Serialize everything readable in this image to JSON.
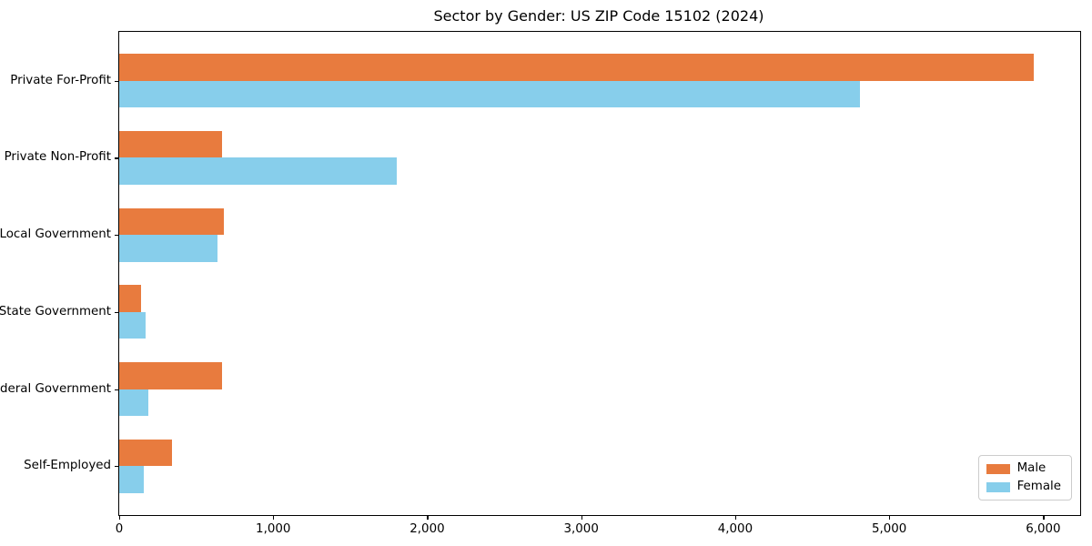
{
  "chart_data": {
    "type": "bar",
    "orientation": "horizontal",
    "title": "Sector by Gender: US ZIP Code 15102 (2024)",
    "categories": [
      "Private For-Profit",
      "Private Non-Profit",
      "Local Government",
      "State Government",
      "Federal Government",
      "Self-Employed"
    ],
    "series": [
      {
        "name": "Male",
        "color": "#e87b3e",
        "values": [
          5940,
          670,
          680,
          140,
          665,
          345
        ]
      },
      {
        "name": "Female",
        "color": "#87ceeb",
        "values": [
          4810,
          1800,
          640,
          170,
          190,
          160
        ]
      }
    ],
    "xlabel": "",
    "ylabel": "",
    "xlim": [
      0,
      6240
    ],
    "x_tick_values": [
      0,
      1000,
      2000,
      3000,
      4000,
      5000,
      6000
    ],
    "x_tick_labels": [
      "0",
      "1,000",
      "2,000",
      "3,000",
      "4,000",
      "5,000",
      "6,000"
    ],
    "bar_height_units": 0.35,
    "grid": false,
    "legend_position": "lower right",
    "plot_background": "#ffffff",
    "spine_color": "#000000"
  }
}
